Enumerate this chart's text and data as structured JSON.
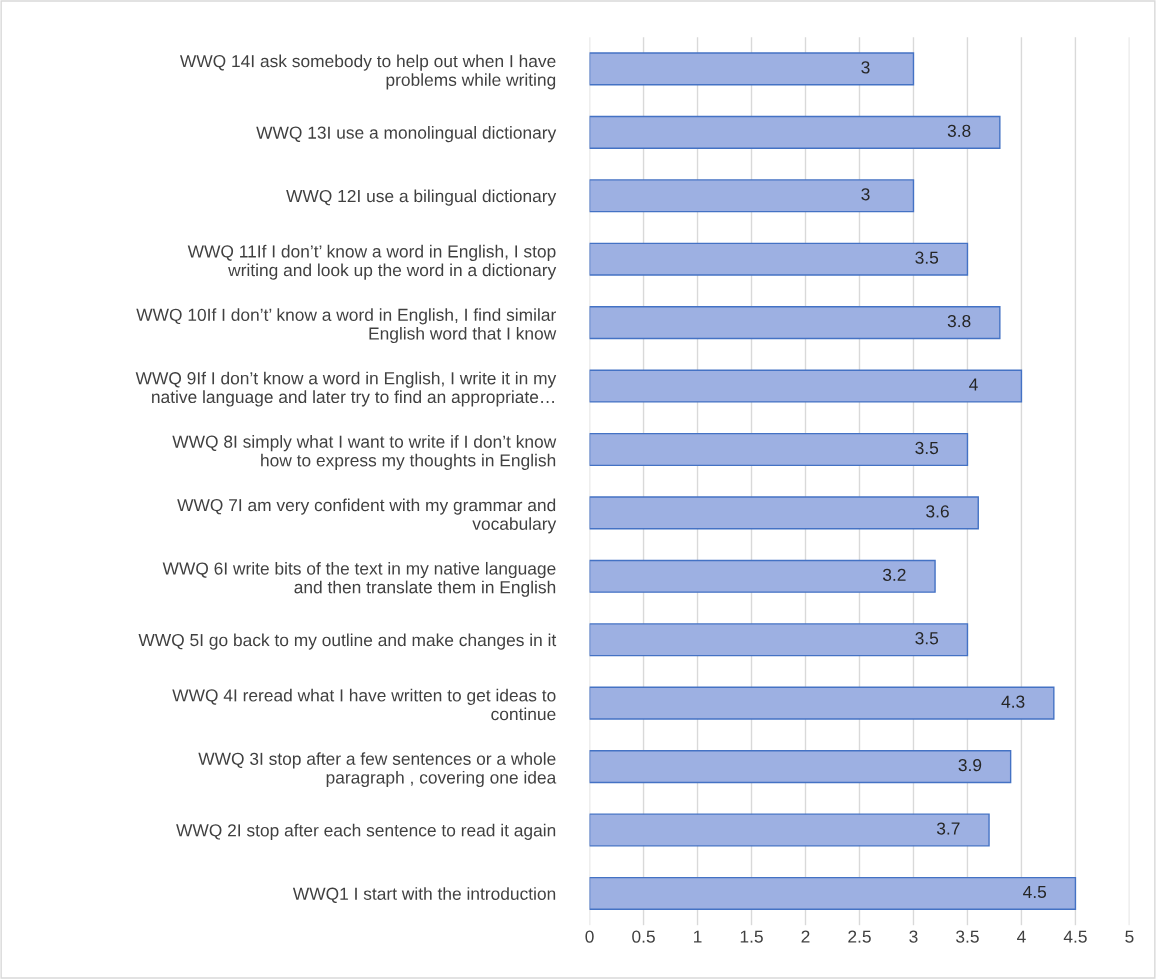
{
  "chart_data": {
    "type": "bar",
    "orientation": "horizontal",
    "categories": [
      "WWQ 14I ask somebody to help out when I have\nproblems while writing",
      "WWQ 13I use a monolingual dictionary",
      "WWQ 12I use a bilingual dictionary",
      "WWQ 11If I don’t’ know a word in English, I stop\nwriting and look up the word in a dictionary",
      "WWQ 10If I don’t’ know a word in English, I find similar\nEnglish word that I know",
      "WWQ 9If I don’t know a word in English, I write it in my\nnative language and later try to find an appropriate…",
      "WWQ 8I simply what I want to write if I don’t know\nhow to express my thoughts in English",
      "WWQ 7I am very confident with my grammar and\nvocabulary",
      "WWQ 6I write bits of the text in my native language\nand then translate them in English",
      "WWQ 5I go back to my outline and make changes in it",
      "WWQ 4I reread what I have written to get ideas to\ncontinue",
      "WWQ 3I stop after a few sentences or a whole\nparagraph , covering one idea",
      "WWQ 2I stop after each sentence to read it again",
      "WWQ1 I start with the introduction"
    ],
    "values": [
      3,
      3.8,
      3,
      3.5,
      3.8,
      4,
      3.5,
      3.6,
      3.2,
      3.5,
      4.3,
      3.9,
      3.7,
      4.5
    ],
    "color": "#9db0e2",
    "xlim": [
      0,
      5
    ],
    "xticks": [
      0,
      0.5,
      1,
      1.5,
      2,
      2.5,
      3,
      3.5,
      4,
      4.5,
      5
    ],
    "grid": "x",
    "data_labels": true
  }
}
